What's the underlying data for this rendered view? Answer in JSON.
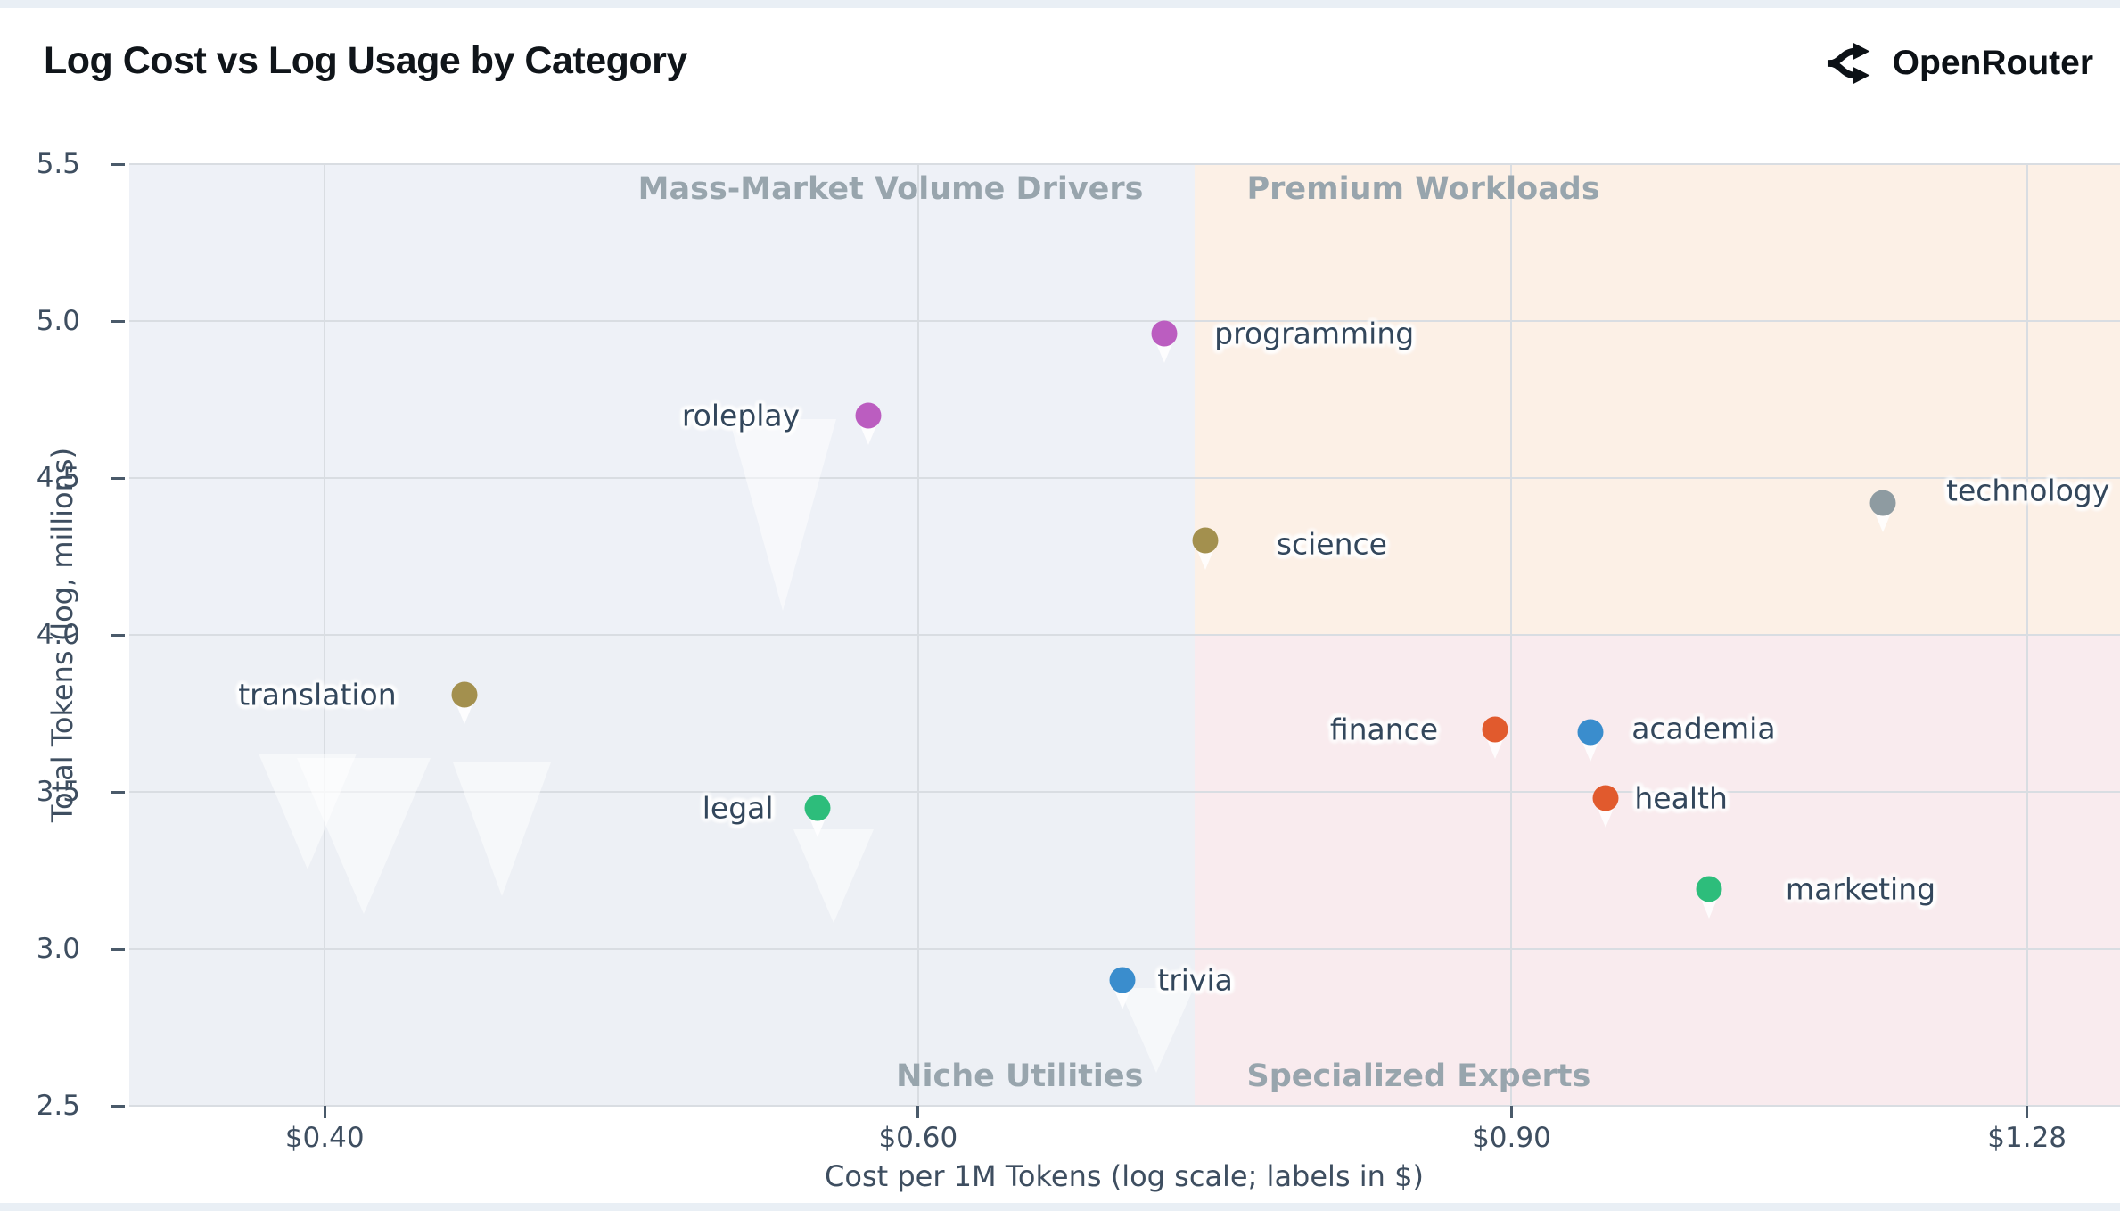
{
  "header": {
    "title": "Log Cost vs Log Usage by Category",
    "brand_name": "OpenRouter",
    "brand_icon": "openrouter-fork-icon"
  },
  "chart_data": {
    "type": "scatter",
    "title": "Log Cost vs Log Usage by Category",
    "xlabel": "Cost per 1M Tokens (log scale; labels in $)",
    "ylabel": "Total Tokens (log, millions)",
    "x_scale": "log10",
    "y_scale": "linear",
    "x_range": [
      0.35,
      1.364
    ],
    "y_range": [
      2.5,
      5.5
    ],
    "grid": true,
    "x_ticks": [
      {
        "value": 0.4,
        "label": "$0.40"
      },
      {
        "value": 0.6,
        "label": "$0.60"
      },
      {
        "value": 0.9,
        "label": "$0.90"
      },
      {
        "value": 1.28,
        "label": "$1.28"
      }
    ],
    "y_ticks": [
      {
        "value": 5.5,
        "label": "5.5"
      },
      {
        "value": 5.0,
        "label": "5.0"
      },
      {
        "value": 4.5,
        "label": "4.5"
      },
      {
        "value": 4.0,
        "label": "4.0"
      },
      {
        "value": 3.5,
        "label": "3.5"
      },
      {
        "value": 3.0,
        "label": "3.0"
      },
      {
        "value": 2.5,
        "label": "2.5"
      }
    ],
    "quadrants": {
      "boundary_cost": 0.725,
      "boundary_usage": 4.0,
      "labels": {
        "top_left": "Mass-Market Volume Drivers",
        "top_right": "Premium Workloads",
        "bottom_left": "Niche Utilities",
        "bottom_right": "Specialized Experts"
      },
      "fills": {
        "top_left": "#eef1f7",
        "top_right": "#fcf0e6",
        "bottom_left": "#edf0f5",
        "bottom_right": "#f9ebee"
      },
      "label_color": "#98a5ad"
    },
    "palette": {
      "purple": "#bb5dc0",
      "olive": "#a3904e",
      "gray": "#8e9ba1",
      "orange": "#e15a2d",
      "blue": "#3a8dcd",
      "green": "#2dbd7b"
    },
    "grid_color": "#d9dde2",
    "point_label_color": "#33475c",
    "tick_color": "#3e4e60",
    "marker_tail_icon": "pin-tail-icon",
    "watermark_icon": "chevron-down-watermark-icon",
    "points": [
      {
        "label": "programming",
        "cost": 0.71,
        "usage": 4.96,
        "color": "purple",
        "label_side": "right",
        "label_gap": 56,
        "label_dy": 0
      },
      {
        "label": "roleplay",
        "cost": 0.58,
        "usage": 4.7,
        "color": "purple",
        "label_side": "left",
        "label_gap": 77,
        "label_dy": 0
      },
      {
        "label": "science",
        "cost": 0.73,
        "usage": 4.3,
        "color": "olive",
        "label_side": "right",
        "label_gap": 80,
        "label_dy": 4
      },
      {
        "label": "technology",
        "cost": 1.16,
        "usage": 4.42,
        "color": "gray",
        "label_side": "right",
        "label_gap": 71,
        "label_dy": -14
      },
      {
        "label": "translation",
        "cost": 0.44,
        "usage": 3.81,
        "color": "olive",
        "label_side": "left",
        "label_gap": 76,
        "label_dy": 0
      },
      {
        "label": "finance",
        "cost": 0.89,
        "usage": 3.7,
        "color": "orange",
        "label_side": "left",
        "label_gap": 64,
        "label_dy": 0
      },
      {
        "label": "academia",
        "cost": 0.95,
        "usage": 3.69,
        "color": "blue",
        "label_side": "right",
        "label_gap": 46,
        "label_dy": -4
      },
      {
        "label": "health",
        "cost": 0.96,
        "usage": 3.48,
        "color": "orange",
        "label_side": "right",
        "label_gap": 32,
        "label_dy": 0
      },
      {
        "label": "legal",
        "cost": 0.56,
        "usage": 3.45,
        "color": "green",
        "label_side": "left",
        "label_gap": 49,
        "label_dy": 0
      },
      {
        "label": "marketing",
        "cost": 1.03,
        "usage": 3.19,
        "color": "green",
        "label_side": "right",
        "label_gap": 86,
        "label_dy": 0
      },
      {
        "label": "trivia",
        "cost": 0.69,
        "usage": 2.9,
        "color": "blue",
        "label_side": "right",
        "label_gap": 39,
        "label_dy": 0
      }
    ]
  }
}
